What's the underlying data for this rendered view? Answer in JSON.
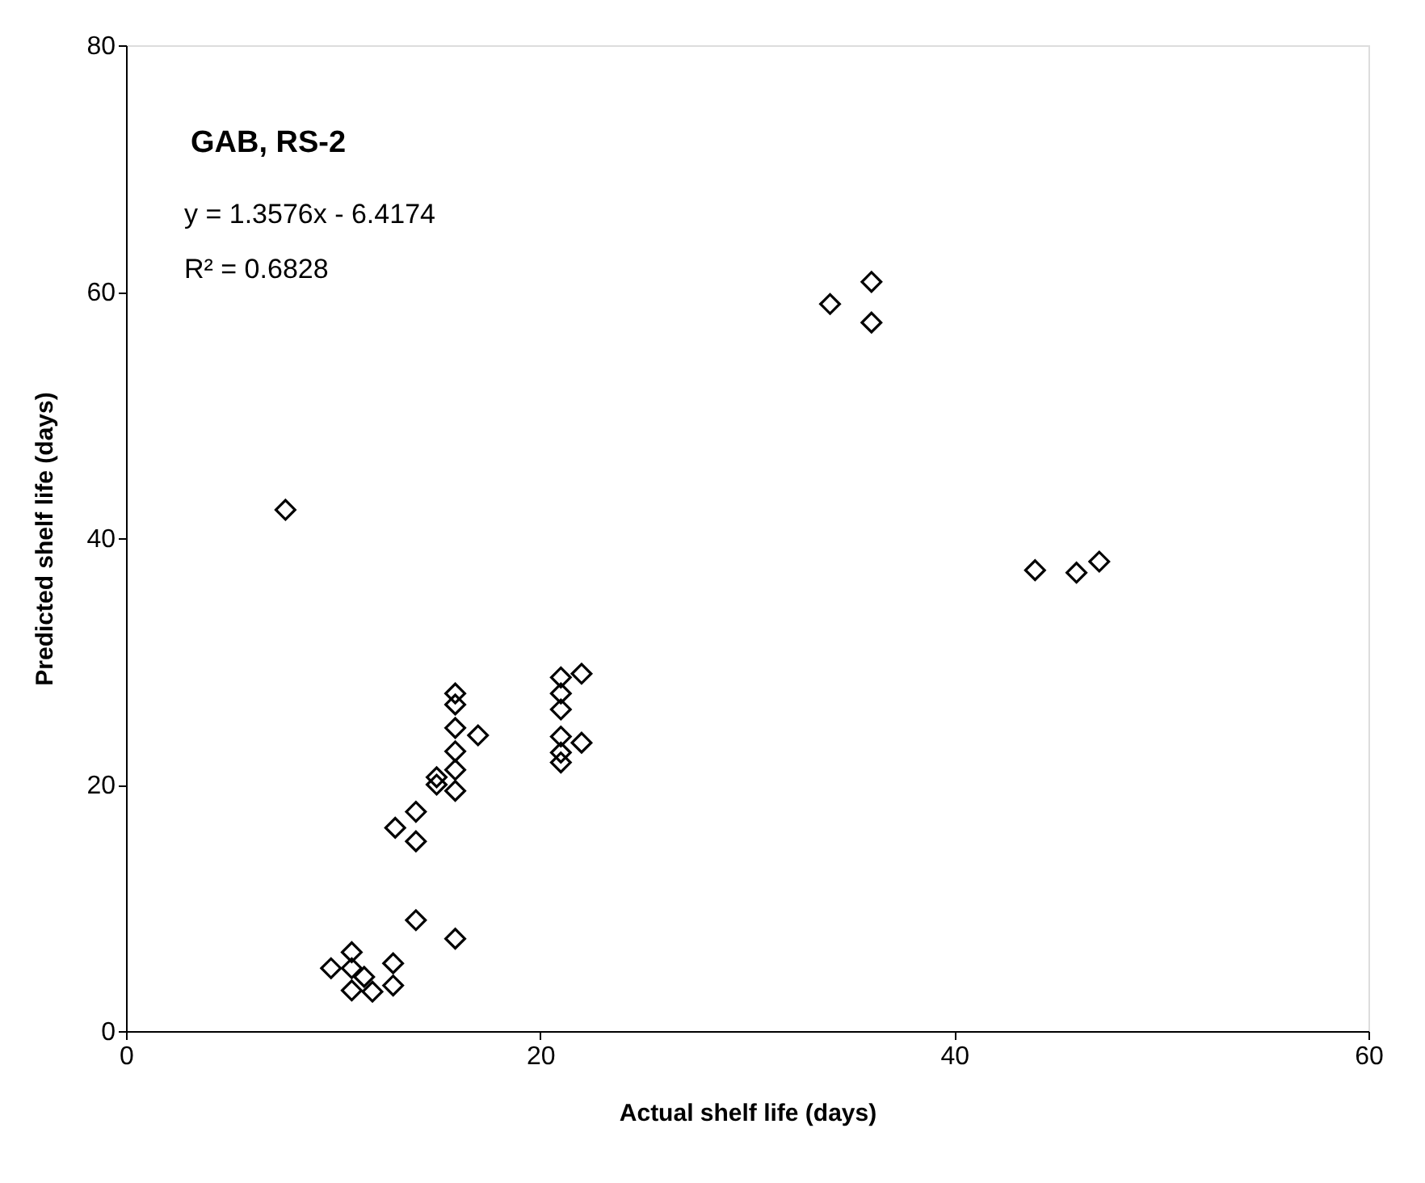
{
  "chart_data": {
    "type": "scatter",
    "title": "GAB, RS-2",
    "xlabel": "Actual shelf life (days)",
    "ylabel": "Predicted shelf life (days)",
    "annotations": [
      "y = 1.3576x - 6.4174",
      "R² = 0.6828"
    ],
    "x": [
      9.9,
      10.9,
      10.9,
      11.5,
      10.9,
      11.9,
      12.9,
      12.9,
      14.0,
      15.9,
      13.0,
      14.0,
      14.0,
      15.0,
      15.0,
      15.9,
      15.9,
      15.9,
      15.9,
      17.0,
      15.9,
      15.9,
      21.0,
      22.0,
      21.0,
      21.0,
      21.0,
      22.0,
      21.0,
      21.0,
      34.0,
      36.0,
      36.0,
      7.7,
      43.9,
      45.9,
      47.0
    ],
    "series": [
      {
        "color": "#000000",
        "values": [
          5.1,
          6.4,
          5.1,
          4.4,
          3.3,
          3.2,
          5.5,
          3.7,
          9.0,
          7.5,
          16.5,
          17.8,
          15.4,
          20.6,
          20.0,
          19.5,
          21.2,
          22.7,
          24.6,
          24.0,
          27.4,
          26.5,
          28.7,
          29.0,
          27.4,
          26.1,
          23.9,
          23.4,
          22.6,
          21.8,
          59.0,
          60.8,
          57.5,
          42.3,
          37.4,
          37.2,
          38.1
        ]
      }
    ],
    "xlim": [
      0,
      60
    ],
    "xticks": [
      0,
      20,
      40,
      60
    ],
    "ylim": [
      0,
      80
    ],
    "yticks": [
      0,
      20,
      40,
      60,
      80
    ],
    "marker": "diamond",
    "grid": false
  }
}
